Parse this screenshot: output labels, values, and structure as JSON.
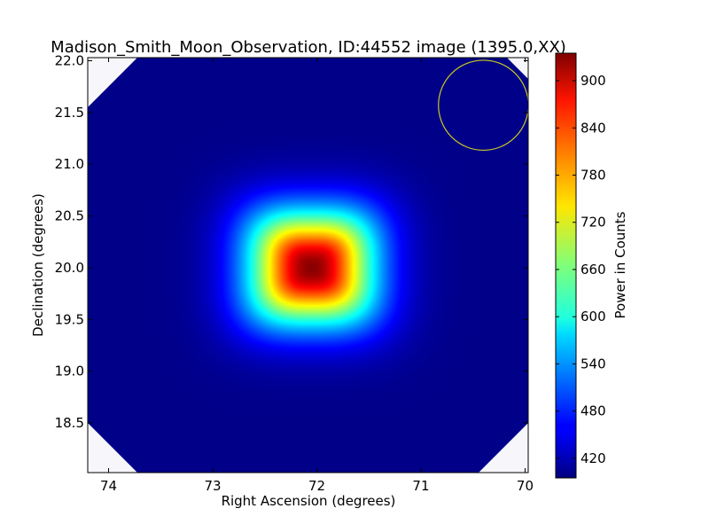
{
  "chart_data": {
    "type": "heatmap",
    "title": "Madison_Smith_Moon_Observation, ID:44552 image (1395.0,XX)",
    "xlabel": "Right Ascension (degrees)",
    "ylabel": "Declination (degrees)",
    "xlim": [
      74.2,
      69.97
    ],
    "ylim": [
      18.02,
      22.03
    ],
    "x_inverted": true,
    "xticks": [
      {
        "value": 74,
        "label": "74"
      },
      {
        "value": 73,
        "label": "73"
      },
      {
        "value": 72,
        "label": "72"
      },
      {
        "value": 71,
        "label": "71"
      },
      {
        "value": 70,
        "label": "70"
      }
    ],
    "yticks": [
      {
        "value": 18.5,
        "label": "18.5"
      },
      {
        "value": 19.0,
        "label": "19.0"
      },
      {
        "value": 19.5,
        "label": "19.5"
      },
      {
        "value": 20.0,
        "label": "20.0"
      },
      {
        "value": 20.5,
        "label": "20.5"
      },
      {
        "value": 21.0,
        "label": "21.0"
      },
      {
        "value": 21.5,
        "label": "21.5"
      },
      {
        "value": 22.0,
        "label": "22.0"
      }
    ],
    "source": {
      "ra": 72.05,
      "dec": 20.0,
      "peak": 930,
      "background": 400,
      "sigma_ra": 0.42,
      "sigma_dec": 0.38
    },
    "beam_circle": {
      "ra": 70.4,
      "dec": 21.57,
      "radius_deg": 0.36,
      "color": "#c8c820"
    },
    "colormap": "jet",
    "colorbar": {
      "label": "Power in Counts",
      "range": [
        395,
        935
      ],
      "ticks": [
        {
          "value": 420,
          "label": "420"
        },
        {
          "value": 480,
          "label": "480"
        },
        {
          "value": 540,
          "label": "540"
        },
        {
          "value": 600,
          "label": "600"
        },
        {
          "value": 660,
          "label": "660"
        },
        {
          "value": 720,
          "label": "720"
        },
        {
          "value": 780,
          "label": "780"
        },
        {
          "value": 840,
          "label": "840"
        },
        {
          "value": 900,
          "label": "900"
        }
      ]
    },
    "grid": false
  }
}
